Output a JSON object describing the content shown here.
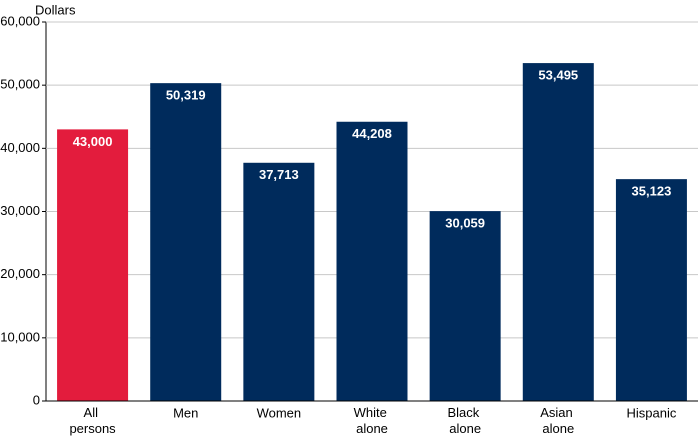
{
  "chart_data": {
    "type": "bar",
    "y_axis_label": "Dollars",
    "categories": [
      "All persons",
      "Men",
      "Women",
      "White alone",
      "Black alone",
      "Asian alone",
      "Hispanic"
    ],
    "values": [
      43000,
      50319,
      37713,
      44208,
      30059,
      53495,
      35123
    ],
    "value_labels": [
      "43,000",
      "50,319",
      "37,713",
      "44,208",
      "30,059",
      "53,495",
      "35,123"
    ],
    "colors": [
      "#e31c3d",
      "#002b5c",
      "#002b5c",
      "#002b5c",
      "#002b5c",
      "#002b5c",
      "#002b5c"
    ],
    "ylim": [
      0,
      60000
    ],
    "yticks": [
      0,
      {
        "value": 10000,
        "label": "10,000"
      },
      {
        "value": 20000,
        "label": "20,000"
      },
      {
        "value": 30000,
        "label": "30,000"
      },
      {
        "value": 40000,
        "label": "40,000"
      },
      {
        "value": 50000,
        "label": "50,000"
      },
      {
        "value": 60000,
        "label": "60,000"
      }
    ],
    "grid": true
  }
}
